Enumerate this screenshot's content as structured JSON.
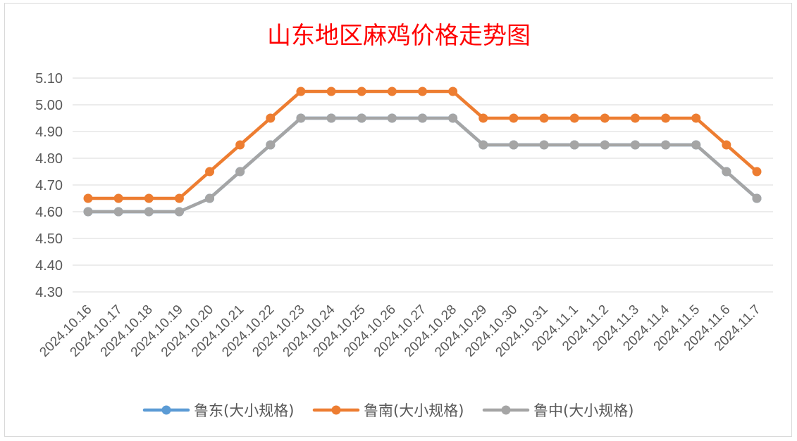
{
  "chart_data": {
    "type": "line",
    "title": "山东地区麻鸡价格走势图",
    "xlabel": "",
    "ylabel": "",
    "categories": [
      "2024.10.16",
      "2024.10.17",
      "2024.10.18",
      "2024.10.19",
      "2024.10.20",
      "2024.10.21",
      "2024.10.22",
      "2024.10.23",
      "2024.10.24",
      "2024.10.25",
      "2024.10.26",
      "2024.10.27",
      "2024.10.28",
      "2024.10.29",
      "2024.10.30",
      "2024.10.31",
      "2024.11.1",
      "2024.11.2",
      "2024.11.3",
      "2024.11.4",
      "2024.11.5",
      "2024.11.6",
      "2024.11.7"
    ],
    "ylim": [
      4.3,
      5.1
    ],
    "yticks": [
      "4.30",
      "4.40",
      "4.50",
      "4.60",
      "4.70",
      "4.80",
      "4.90",
      "5.00",
      "5.10"
    ],
    "grid": true,
    "legend_position": "bottom",
    "series": [
      {
        "name": "鲁东(大小规格)",
        "color": "#5b9bd5",
        "values": [
          4.6,
          4.6,
          4.6,
          4.6,
          4.65,
          4.75,
          4.85,
          4.95,
          4.95,
          4.95,
          4.95,
          4.95,
          4.95,
          4.85,
          4.85,
          4.85,
          4.85,
          4.85,
          4.85,
          4.85,
          4.85,
          4.75,
          4.65
        ]
      },
      {
        "name": "鲁南(大小规格)",
        "color": "#ed7d31",
        "values": [
          4.65,
          4.65,
          4.65,
          4.65,
          4.75,
          4.85,
          4.95,
          5.05,
          5.05,
          5.05,
          5.05,
          5.05,
          5.05,
          4.95,
          4.95,
          4.95,
          4.95,
          4.95,
          4.95,
          4.95,
          4.95,
          4.85,
          4.75
        ]
      },
      {
        "name": "鲁中(大小规格)",
        "color": "#a5a5a5",
        "values": [
          4.6,
          4.6,
          4.6,
          4.6,
          4.65,
          4.75,
          4.85,
          4.95,
          4.95,
          4.95,
          4.95,
          4.95,
          4.95,
          4.85,
          4.85,
          4.85,
          4.85,
          4.85,
          4.85,
          4.85,
          4.85,
          4.75,
          4.65
        ]
      }
    ]
  }
}
